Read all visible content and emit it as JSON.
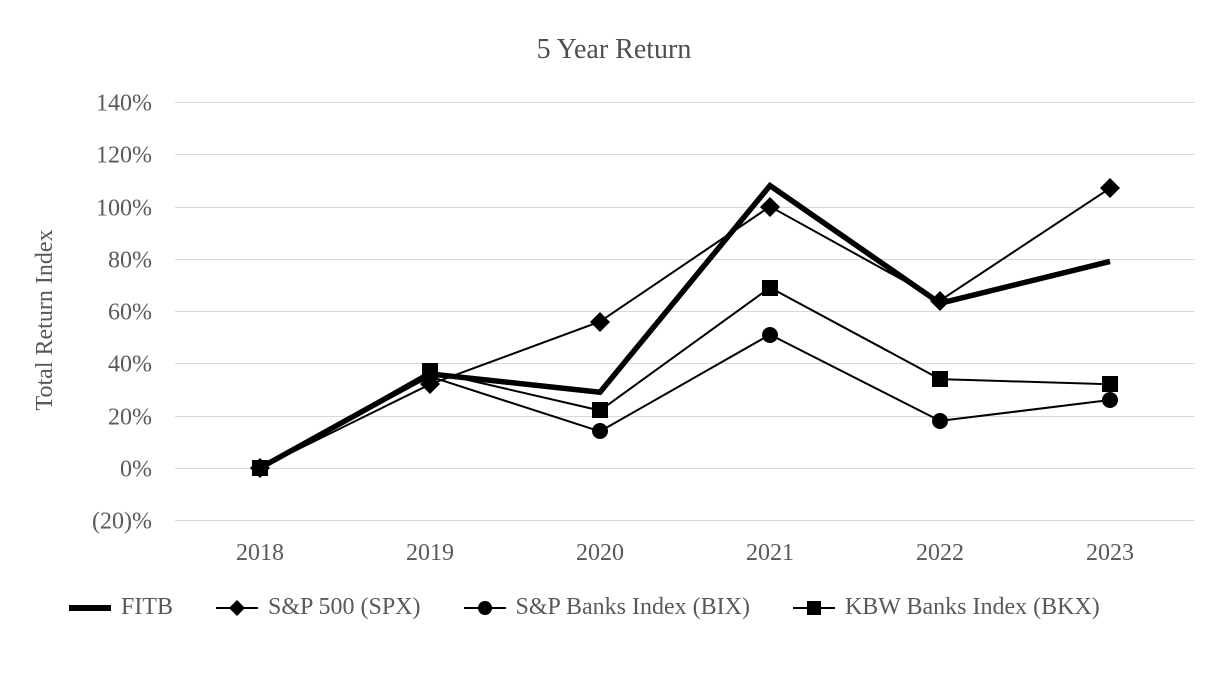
{
  "chart_data": {
    "type": "line",
    "title": "5 Year Return",
    "xlabel": "",
    "ylabel": "Total Return Index",
    "categories": [
      "2018",
      "2019",
      "2020",
      "2021",
      "2022",
      "2023"
    ],
    "series": [
      {
        "name": "FITB",
        "marker": "none",
        "line_weight": "thick",
        "values": [
          0,
          36,
          29,
          108,
          63,
          79
        ]
      },
      {
        "name": "S&P 500 (SPX)",
        "marker": "diamond",
        "line_weight": "thin",
        "values": [
          0,
          32,
          56,
          100,
          64,
          107
        ]
      },
      {
        "name": "S&P Banks Index (BIX)",
        "marker": "circle",
        "line_weight": "thin",
        "values": [
          0,
          35,
          14,
          51,
          18,
          26
        ]
      },
      {
        "name": "KBW Banks Index (BKX)",
        "marker": "square",
        "line_weight": "thin",
        "values": [
          0,
          37,
          22,
          69,
          34,
          32
        ]
      }
    ],
    "y_ticks": [
      {
        "label": "140%",
        "value": 140
      },
      {
        "label": "120%",
        "value": 120
      },
      {
        "label": "100%",
        "value": 100
      },
      {
        "label": "80%",
        "value": 80
      },
      {
        "label": "60%",
        "value": 60
      },
      {
        "label": "40%",
        "value": 40
      },
      {
        "label": "20%",
        "value": 20
      },
      {
        "label": "0%",
        "value": 0
      },
      {
        "label": "(20)%",
        "value": -20
      }
    ],
    "ylim": [
      -20,
      140
    ],
    "grid": true,
    "legend_position": "bottom",
    "colors": {
      "series": "#000000",
      "grid": "#d9d9d9",
      "text": "#595959",
      "title": "#4f4f4f",
      "background": "#ffffff"
    }
  }
}
